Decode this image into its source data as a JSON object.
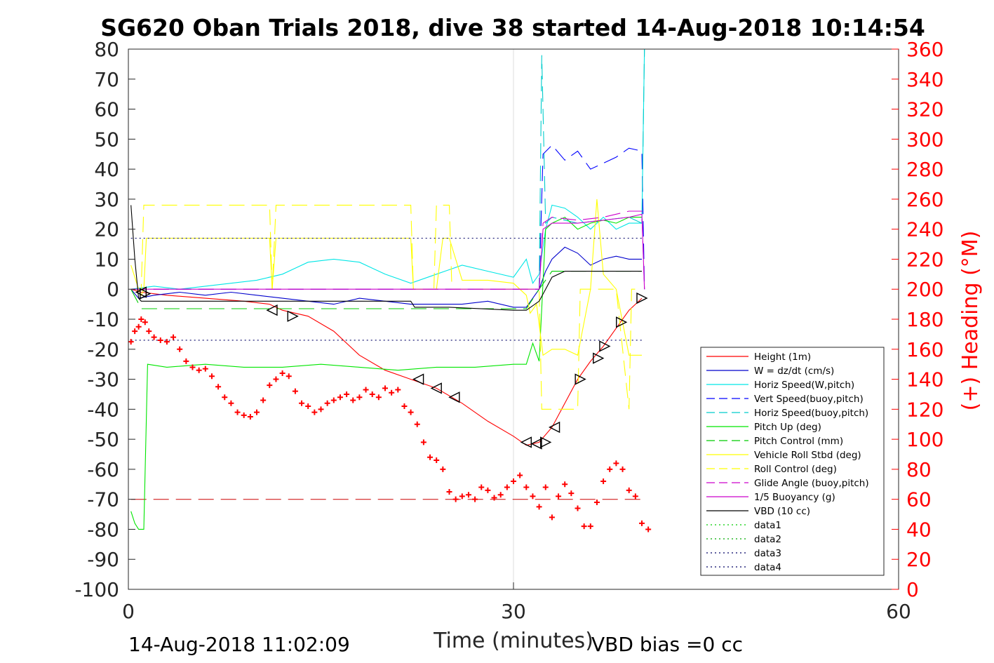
{
  "chart_data": {
    "type": "line",
    "title": "SG620 Oban Trials 2018, dive 38 started 14-Aug-2018 10:14:54",
    "xlabel": "Time (minutes)",
    "ylabel_right": "(+) Heading (°M)",
    "xlim": [
      0,
      60
    ],
    "ylim_left": [
      -100,
      80
    ],
    "ylim_right": [
      0,
      360
    ],
    "xticks": [
      "0",
      "30",
      "60"
    ],
    "yticks_left": [
      "80",
      "70",
      "60",
      "50",
      "40",
      "30",
      "20",
      "10",
      "0",
      "-10",
      "-20",
      "-30",
      "-40",
      "-50",
      "-60",
      "-70",
      "-80",
      "-90",
      "-100"
    ],
    "yticks_right": [
      "360",
      "340",
      "320",
      "300",
      "280",
      "260",
      "240",
      "220",
      "200",
      "180",
      "160",
      "140",
      "120",
      "100",
      "80",
      "60",
      "40",
      "20",
      "0"
    ],
    "grid": "x at 30",
    "legend_position": "bottom-right",
    "footer_left": "14-Aug-2018 11:02:09",
    "footer_right": "VBD bias =0 cc",
    "series": [
      {
        "name": "Height (1m)",
        "color": "#ff0000",
        "style": "solid",
        "x": [
          0.2,
          1,
          3,
          6,
          9,
          11,
          12,
          14,
          16,
          18,
          20,
          22,
          24,
          26,
          28,
          30,
          31,
          32,
          33,
          34,
          35,
          36,
          37,
          38,
          39,
          40
        ],
        "y": [
          0,
          -1,
          -2,
          -3,
          -4,
          -5,
          -7,
          -9,
          -14,
          -22,
          -27,
          -30,
          -33,
          -38,
          -44,
          -49,
          -52,
          -51,
          -46,
          -38,
          -30,
          -24,
          -19,
          -13,
          -7,
          -3
        ]
      },
      {
        "name": "W = dz/dt (cm/s)",
        "color": "#0000cc",
        "style": "solid",
        "x": [
          0.2,
          0.8,
          2,
          4,
          6,
          8,
          10,
          12,
          14,
          16,
          18,
          20,
          22,
          24,
          26,
          28,
          30,
          31,
          32,
          32.5,
          33,
          34,
          35,
          36,
          37,
          38,
          39,
          40
        ],
        "y": [
          0,
          -3,
          -2,
          -1,
          -2,
          -1,
          -2,
          -3,
          -4,
          -5,
          -3,
          -4,
          -5,
          -5,
          -5,
          -4,
          -6,
          -6,
          0,
          6,
          10,
          14,
          12,
          8,
          10,
          11,
          10,
          10
        ]
      },
      {
        "name": "Horiz Speed(W,pitch)",
        "color": "#00e6e6",
        "style": "solid",
        "x": [
          0.2,
          2,
          4,
          6,
          8,
          10,
          12,
          14,
          16,
          18,
          20,
          22,
          24,
          26,
          28,
          30,
          31,
          31.5,
          32,
          32.5,
          33,
          34,
          35,
          36,
          37,
          38,
          39,
          40,
          40.2
        ],
        "y": [
          0,
          1,
          0,
          1,
          2,
          3,
          5,
          9,
          10,
          9,
          5,
          2,
          5,
          8,
          6,
          4,
          10,
          2,
          5,
          20,
          28,
          27,
          24,
          20,
          24,
          20,
          22,
          22,
          80
        ]
      },
      {
        "name": "Vert Speed(buoy,pitch)",
        "color": "#0000ff",
        "style": "dashed",
        "x": [
          0.2,
          5,
          10,
          15,
          20,
          25,
          30,
          32,
          32.3,
          33,
          34,
          35,
          36,
          37,
          38,
          39,
          40,
          40.2
        ],
        "y": [
          0,
          0,
          0,
          0,
          0,
          0,
          0,
          0,
          45,
          48,
          43,
          46,
          40,
          42,
          44,
          47,
          46,
          0
        ]
      },
      {
        "name": "Horiz Speed(buoy,pitch)",
        "color": "#00cccc",
        "style": "dashed",
        "x": [
          0.2,
          10,
          20,
          30,
          32,
          32.2,
          32.5,
          33,
          35,
          37,
          39,
          40,
          40.2
        ],
        "y": [
          0,
          0,
          0,
          0,
          0,
          78,
          22,
          24,
          22,
          23,
          24,
          22,
          80
        ]
      },
      {
        "name": "Pitch Up (deg)",
        "color": "#00e600",
        "style": "solid",
        "x": [
          0.2,
          0.5,
          0.8,
          1.2,
          1.5,
          3,
          6,
          9,
          12,
          15,
          18,
          21,
          24,
          27,
          30,
          31,
          31.5,
          32,
          32.5,
          33,
          34,
          35,
          36,
          37,
          38,
          39,
          40
        ],
        "y": [
          -74,
          -78,
          -80,
          -80,
          -25,
          -26,
          -25,
          -26,
          -26,
          -25,
          -26,
          -27,
          -26,
          -26,
          -25,
          -25,
          -18,
          -24,
          20,
          22,
          24,
          20,
          22,
          23,
          22,
          24,
          24
        ]
      },
      {
        "name": "Pitch Control (mm)",
        "color": "#00cc00",
        "style": "dashed",
        "x": [
          0.2,
          1,
          10,
          20,
          30,
          31,
          32,
          33,
          35,
          40
        ],
        "y": [
          0,
          -6.5,
          -6.5,
          -6.5,
          -6.5,
          -6.5,
          0,
          6,
          6,
          6
        ]
      },
      {
        "name": "Vehicle Roll Stbd (deg)",
        "color": "#ffff00",
        "style": "solid",
        "x": [
          0.2,
          0.8,
          1,
          1.2,
          1.4,
          6,
          11,
          11.2,
          11.5,
          16,
          22,
          22.2,
          22.5,
          24,
          24.5,
          25,
          26,
          28,
          30,
          31,
          31.3,
          31.8,
          32.3,
          33,
          34,
          35,
          36,
          36.5,
          37,
          38,
          39,
          40
        ],
        "y": [
          8,
          0,
          -2,
          0,
          17,
          17,
          17,
          0,
          17,
          17,
          17,
          0,
          0,
          0,
          17,
          17,
          3,
          3,
          2,
          -2,
          -8,
          -5,
          -22,
          -20,
          -20,
          -22,
          0,
          30,
          5,
          0,
          -22,
          -22
        ]
      },
      {
        "name": "Roll Control (deg)",
        "color": "#ffff00",
        "style": "dashed",
        "x": [
          0.2,
          1,
          1.2,
          5,
          10,
          11,
          11.2,
          11.5,
          16,
          20,
          22,
          22.2,
          23.8,
          24,
          25,
          25.2,
          25.5,
          30,
          31,
          32,
          32.2,
          33,
          35,
          35.2,
          38,
          39,
          39.2,
          40
        ],
        "y": [
          0,
          0,
          28,
          28,
          28,
          28,
          0,
          28,
          28,
          28,
          28,
          0,
          0,
          28,
          28,
          0,
          0,
          0,
          0,
          0,
          -40,
          -40,
          -40,
          0,
          0,
          -40,
          0,
          0
        ]
      },
      {
        "name": "Glide Angle (buoy,pitch)",
        "color": "#cc00cc",
        "style": "dashed",
        "x": [
          0.2,
          10,
          20,
          30,
          32,
          32.3,
          33,
          35,
          37,
          39,
          40,
          40.2
        ],
        "y": [
          0,
          0,
          0,
          0,
          0,
          22,
          24,
          23,
          24,
          26,
          26,
          0
        ]
      },
      {
        "name": "1/5 Buoyancy (g)",
        "color": "#cc00cc",
        "style": "solid",
        "x": [
          0.2,
          10,
          20,
          30,
          32,
          32.3,
          33,
          35,
          37,
          39,
          40,
          40.2
        ],
        "y": [
          0,
          0,
          0,
          0,
          0,
          20,
          22,
          22,
          23,
          24,
          25,
          0
        ]
      },
      {
        "name": "VBD (10 cc)",
        "color": "#000000",
        "style": "solid",
        "x": [
          0.2,
          0.5,
          0.8,
          1,
          5,
          10,
          20,
          22,
          22.3,
          25,
          30,
          31,
          32,
          32.5,
          33,
          34,
          36,
          38,
          40
        ],
        "y": [
          28,
          10,
          -3,
          -4,
          -4,
          -4,
          -4,
          -4,
          -6,
          -6,
          -7,
          -7,
          -4,
          0,
          4,
          6,
          6,
          6,
          6
        ]
      },
      {
        "name": "data1",
        "color": "#00cc00",
        "style": "dotted",
        "x": [],
        "y": []
      },
      {
        "name": "data2",
        "color": "#00aa00",
        "style": "dotted",
        "x": [],
        "y": []
      },
      {
        "name": "data3",
        "color": "#000066",
        "style": "dotted",
        "x": [
          0.2,
          40
        ],
        "y": [
          17,
          17
        ]
      },
      {
        "name": "data4",
        "color": "#000066",
        "style": "dotted",
        "x": [
          0.2,
          40
        ],
        "y": [
          -17,
          -17
        ]
      }
    ],
    "extra_lines": [
      {
        "color": "#cc0000",
        "style": "dashed",
        "x": [
          0.2,
          40
        ],
        "y": [
          -70,
          -70
        ]
      }
    ],
    "heading": {
      "color": "#ff0000",
      "marker": "+",
      "axis": "right",
      "x": [
        0.2,
        0.5,
        0.8,
        1,
        1.3,
        1.6,
        2,
        2.5,
        3,
        3.5,
        4,
        4.5,
        5,
        5.5,
        6,
        6.5,
        7,
        7.5,
        8,
        8.5,
        9,
        9.5,
        10,
        10.5,
        11,
        11.5,
        12,
        12.5,
        13,
        13.5,
        14,
        14.5,
        15,
        15.5,
        16,
        16.5,
        17,
        17.5,
        18,
        18.5,
        19,
        19.5,
        20,
        20.5,
        21,
        21.5,
        22,
        22.5,
        23,
        23.5,
        24,
        24.5,
        25,
        25.5,
        26,
        26.5,
        27,
        27.5,
        28,
        28.5,
        29,
        29.5,
        30,
        30.5,
        31,
        31.5,
        32,
        32.5,
        33,
        33.5,
        34,
        34.5,
        35,
        35.5,
        36,
        36.5,
        37,
        37.5,
        38,
        38.5,
        39,
        39.5,
        40,
        40.5
      ],
      "y": [
        165,
        172,
        175,
        180,
        178,
        172,
        168,
        166,
        165,
        168,
        160,
        152,
        148,
        146,
        147,
        142,
        135,
        128,
        124,
        118,
        116,
        115,
        118,
        126,
        136,
        140,
        144,
        142,
        132,
        124,
        122,
        118,
        120,
        124,
        126,
        128,
        130,
        126,
        128,
        133,
        130,
        128,
        134,
        131,
        133,
        122,
        118,
        110,
        98,
        88,
        86,
        80,
        65,
        60,
        62,
        63,
        60,
        68,
        66,
        61,
        63,
        68,
        72,
        76,
        68,
        62,
        55,
        68,
        48,
        62,
        70,
        64,
        54,
        42,
        42,
        58,
        72,
        80,
        84,
        80,
        66,
        62,
        44,
        40
      ]
    },
    "triangles": {
      "color": "#000000",
      "points": [
        {
          "x": 1.0,
          "y": -1,
          "dir": "left"
        },
        {
          "x": 1.3,
          "y": -1.5,
          "dir": "right"
        },
        {
          "x": 11.2,
          "y": -7,
          "dir": "left"
        },
        {
          "x": 12.8,
          "y": -9,
          "dir": "right"
        },
        {
          "x": 22.6,
          "y": -30,
          "dir": "left"
        },
        {
          "x": 24.0,
          "y": -33,
          "dir": "left"
        },
        {
          "x": 25.4,
          "y": -36,
          "dir": "left"
        },
        {
          "x": 31.0,
          "y": -51,
          "dir": "left"
        },
        {
          "x": 31.8,
          "y": -51.5,
          "dir": "left"
        },
        {
          "x": 32.5,
          "y": -51,
          "dir": "right"
        },
        {
          "x": 33.2,
          "y": -46,
          "dir": "left"
        },
        {
          "x": 35.2,
          "y": -30,
          "dir": "right"
        },
        {
          "x": 36.6,
          "y": -23,
          "dir": "right"
        },
        {
          "x": 37.1,
          "y": -19,
          "dir": "right"
        },
        {
          "x": 38.4,
          "y": -11,
          "dir": "right"
        },
        {
          "x": 40.0,
          "y": -3,
          "dir": "right"
        }
      ]
    }
  }
}
